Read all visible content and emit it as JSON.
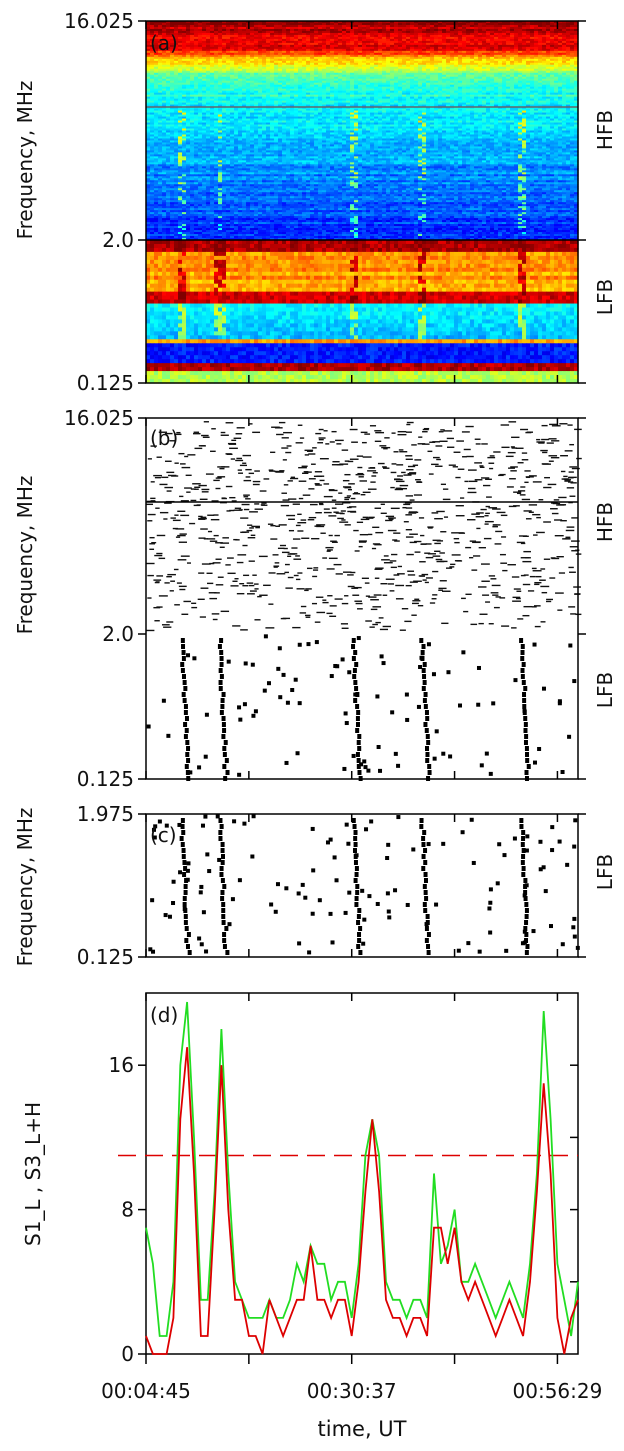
{
  "chart_data": [
    {
      "panel_label": "(a)",
      "type": "heatmap",
      "ylabel": "Frequency, MHz",
      "y_ticks": [
        "16.025",
        "2.0",
        "0.125"
      ],
      "band_labels": [
        "HFB",
        "LFB"
      ],
      "colormap": "jet",
      "x_range_minutes": [
        0,
        64
      ]
    },
    {
      "panel_label": "(b)",
      "type": "heatmap",
      "ylabel": "Frequency, MHz",
      "y_ticks": [
        "16.025",
        "2.0",
        "0.125"
      ],
      "band_labels": [
        "HFB",
        "LFB"
      ],
      "colormap": "binary",
      "burst_columns_minutes": [
        5,
        10.5,
        30,
        40,
        54.5
      ]
    },
    {
      "panel_label": "(c)",
      "type": "heatmap",
      "ylabel": "Frequency, MHz",
      "y_ticks": [
        "1.975",
        "0.125"
      ],
      "band_labels": [
        "LFB"
      ],
      "colormap": "binary",
      "burst_columns_minutes": [
        5,
        10.5,
        30,
        40,
        54.5
      ]
    },
    {
      "panel_label": "(d)",
      "type": "line",
      "ylabel": "S1_L , S3_L+H",
      "xlabel": "time, UT",
      "x_ticks": [
        "00:04:45",
        "00:30:37",
        "00:56:29"
      ],
      "y_ticks": [
        "0",
        "8",
        "16"
      ],
      "ylim": [
        0,
        20
      ],
      "threshold": 11,
      "x": [
        0,
        1,
        2,
        3,
        4,
        5,
        6,
        7,
        8,
        9,
        10,
        11,
        12,
        13,
        14,
        15,
        16,
        17,
        18,
        19,
        20,
        21,
        22,
        23,
        24,
        25,
        26,
        27,
        28,
        29,
        30,
        31,
        32,
        33,
        34,
        35,
        36,
        37,
        38,
        39,
        40,
        41,
        42,
        43,
        44,
        45,
        46,
        47,
        48,
        49,
        50,
        51,
        52,
        53,
        54,
        55,
        56,
        57,
        58,
        59,
        60,
        61,
        62,
        63
      ],
      "series": [
        {
          "color": "#22dd22",
          "values": [
            7,
            5,
            1,
            1,
            4,
            16,
            19.5,
            12,
            3,
            3,
            9,
            18,
            10,
            4,
            3,
            2,
            2,
            2,
            3,
            2,
            2,
            3,
            5,
            4,
            6,
            5,
            5,
            3,
            4,
            4,
            2,
            5,
            11,
            13,
            11,
            4,
            3,
            3,
            2,
            3,
            3,
            2,
            10,
            5,
            6,
            8,
            4,
            4,
            5,
            4,
            3,
            2,
            3,
            4,
            3,
            2,
            5,
            10,
            19,
            13,
            5,
            3,
            1,
            4
          ]
        },
        {
          "color": "#dd0000",
          "values": [
            1,
            0,
            0,
            0,
            2,
            13,
            17,
            10,
            1,
            1,
            8,
            16,
            8,
            3,
            3,
            1,
            1,
            0,
            3,
            2,
            1,
            2,
            3,
            3,
            6,
            3,
            3,
            2,
            3,
            3,
            1,
            4,
            9,
            13,
            9,
            3,
            2,
            2,
            1,
            2,
            2,
            1,
            7,
            7,
            5,
            7,
            4,
            3,
            4,
            3,
            2,
            1,
            2,
            3,
            2,
            1,
            4,
            9,
            15,
            10,
            2,
            0,
            2,
            3
          ]
        }
      ]
    }
  ],
  "colors": {
    "threshold": "#dd0000",
    "series_green": "#22dd22",
    "series_red": "#dd0000"
  }
}
